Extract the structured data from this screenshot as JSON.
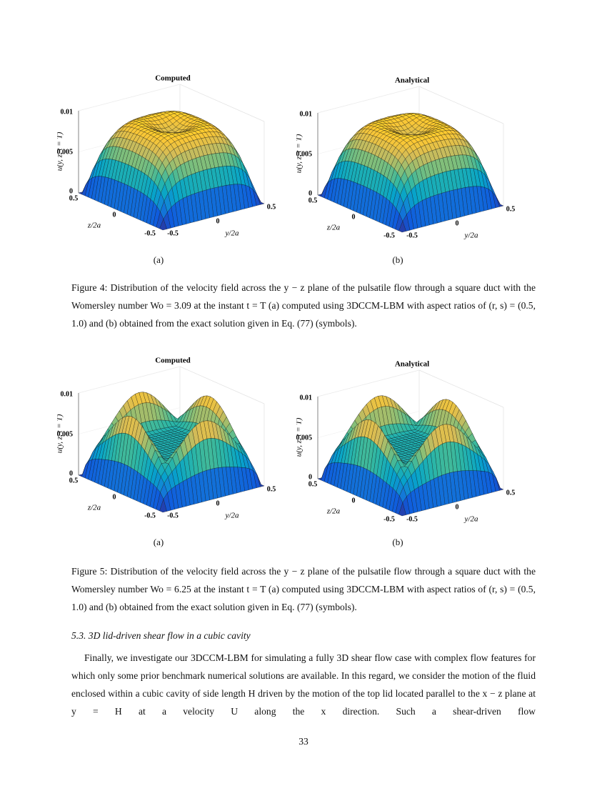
{
  "figures": [
    {
      "panels": [
        {
          "title": "Computed",
          "zlabel": "u(y, z, t = T)",
          "vticks": [
            "0.01",
            "0.005",
            "0"
          ],
          "zticks": [
            "0.5",
            "0",
            "-0.5"
          ],
          "zaxis_label": "z/2a",
          "yticks": [
            "-0.5",
            "0",
            "0.5"
          ],
          "yaxis_label": "y/2a",
          "tag": "(a)"
        },
        {
          "title": "Analytical",
          "zlabel": "u(y, z, t = T)",
          "vticks": [
            "0.01",
            "0.005",
            "0"
          ],
          "zticks": [
            "0.5",
            "0",
            "-0.5"
          ],
          "zaxis_label": "z/2a",
          "yticks": [
            "-0.5",
            "0",
            "0.5"
          ],
          "yaxis_label": "y/2a",
          "tag": "(b)"
        }
      ],
      "caption": "Figure 4: Distribution of the velocity field across the y − z plane of the pulsatile flow through a square duct with the Womersley number Wo = 3.09 at the instant t = T (a) computed using 3DCCM-LBM with aspect ratios of (r, s) = (0.5, 1.0) and (b) obtained from the exact solution given in Eq. (77) (symbols)."
    },
    {
      "panels": [
        {
          "title": "Computed",
          "zlabel": "u(y, z, t = T)",
          "vticks": [
            "0.01",
            "0.005",
            "0"
          ],
          "zticks": [
            "0.5",
            "0",
            "-0.5"
          ],
          "zaxis_label": "z/2a",
          "yticks": [
            "-0.5",
            "0",
            "0.5"
          ],
          "yaxis_label": "y/2a",
          "tag": "(a)"
        },
        {
          "title": "Analytical",
          "zlabel": "u(y, z, t = T)",
          "vticks": [
            "0.01",
            "0.005",
            "0"
          ],
          "zticks": [
            "0.5",
            "0",
            "-0.5"
          ],
          "zaxis_label": "z/2a",
          "yticks": [
            "-0.5",
            "0",
            "0.5"
          ],
          "yaxis_label": "y/2a",
          "tag": "(b)"
        }
      ],
      "caption": "Figure 5: Distribution of the velocity field across the y − z plane of the pulsatile flow through a square duct with the Womersley number Wo = 6.25 at the instant t = T (a) computed using 3DCCM-LBM with aspect ratios of (r, s) = (0.5, 1.0) and (b) obtained from the exact solution given in Eq. (77) (symbols)."
    }
  ],
  "section": {
    "heading": "5.3. 3D lid-driven shear flow in a cubic cavity",
    "paragraph": "Finally, we investigate our 3DCCM-LBM for simulating a fully 3D shear flow case with complex flow features for which only some prior benchmark numerical solutions are available. In this regard, we consider the motion of the fluid enclosed within a cubic cavity of side length H driven by the motion of the top lid located parallel to the x − z plane at y = H at a velocity U along the x direction. Such a shear-driven flow"
  },
  "page_number": "33"
}
